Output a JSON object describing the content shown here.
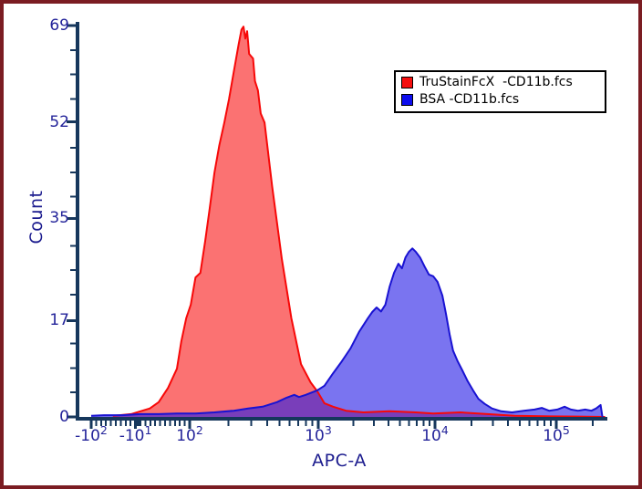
{
  "window": {
    "background": "#ffffff",
    "border_color": "#7b1c22"
  },
  "chart_data": {
    "type": "area",
    "subtype": "flow-cytometry-overlay-histogram",
    "title": "",
    "legend_position": "top-right",
    "grid": false,
    "style": {
      "axis_line_color": "#16375c",
      "tick_label_color": "#24249a",
      "axis_title_color": "#1b1b8e",
      "plot_background": "#ffffff"
    },
    "x_axis": {
      "label": "APC-A",
      "scale": "biexponential",
      "range": [
        -140,
        260000
      ],
      "major_ticks": [
        {
          "base": "-10",
          "exp": "2",
          "value": -100
        },
        {
          "base": "-10",
          "exp": "1",
          "value": -10
        },
        {
          "base": "10",
          "exp": "2",
          "value": 100
        },
        {
          "base": "10",
          "exp": "3",
          "value": 1000
        },
        {
          "base": "10",
          "exp": "4",
          "value": 10000
        },
        {
          "base": "10",
          "exp": "5",
          "value": 100000
        }
      ]
    },
    "y_axis": {
      "label": "Count",
      "scale": "linear",
      "range": [
        0,
        69
      ],
      "ticks": [
        {
          "label": "0",
          "value": 0
        },
        {
          "label": "17",
          "value": 17
        },
        {
          "label": "35",
          "value": 35
        },
        {
          "label": "52",
          "value": 52
        },
        {
          "label": "69",
          "value": 69
        }
      ],
      "minor_divisions_per_interval": 4
    },
    "series": [
      {
        "name": "TruStainFcX  -CD11b.fcs",
        "stroke": "#f70808",
        "fill": "rgba(248,12,12,0.58)",
        "swatch": "#f50f0f",
        "points": [
          [
            -56,
            0.2
          ],
          [
            -19,
            0.5
          ],
          [
            0,
            1.0
          ],
          [
            19,
            1.5
          ],
          [
            37,
            2.6
          ],
          [
            56,
            5.1
          ],
          [
            74,
            8.5
          ],
          [
            83,
            13.3
          ],
          [
            93,
            17.4
          ],
          [
            102,
            19.8
          ],
          [
            111,
            24.6
          ],
          [
            121,
            25.4
          ],
          [
            132,
            31.0
          ],
          [
            143,
            36.7
          ],
          [
            156,
            43.1
          ],
          [
            170,
            47.9
          ],
          [
            186,
            51.9
          ],
          [
            202,
            56.0
          ],
          [
            220,
            60.8
          ],
          [
            240,
            65.6
          ],
          [
            253,
            68.3
          ],
          [
            262,
            68.8
          ],
          [
            271,
            66.7
          ],
          [
            280,
            68.0
          ],
          [
            290,
            64.0
          ],
          [
            311,
            63.2
          ],
          [
            322,
            59.2
          ],
          [
            339,
            57.6
          ],
          [
            357,
            53.5
          ],
          [
            382,
            51.9
          ],
          [
            438,
            40.7
          ],
          [
            521,
            27.8
          ],
          [
            618,
            17.4
          ],
          [
            734,
            9.3
          ],
          [
            872,
            6.1
          ],
          [
            983,
            4.5
          ],
          [
            1130,
            2.4
          ],
          [
            1340,
            1.8
          ],
          [
            1730,
            1.1
          ],
          [
            2440,
            0.8
          ],
          [
            4090,
            1.0
          ],
          [
            6850,
            0.8
          ],
          [
            9660,
            0.6
          ],
          [
            16200,
            0.8
          ],
          [
            27100,
            0.5
          ],
          [
            45400,
            0.2
          ],
          [
            90200,
            0.1
          ],
          [
            179000,
            0.05
          ],
          [
            253000,
            0
          ]
        ]
      },
      {
        "name": "BSA -CD11b.fcs",
        "stroke": "#1912d2",
        "fill": "rgba(40,30,230,0.62)",
        "swatch": "#0d0dee",
        "points": [
          [
            -100,
            0.2
          ],
          [
            -74,
            0.3
          ],
          [
            -37,
            0.3
          ],
          [
            0,
            0.5
          ],
          [
            37,
            0.5
          ],
          [
            74,
            0.6
          ],
          [
            111,
            0.6
          ],
          [
            156,
            0.8
          ],
          [
            220,
            1.1
          ],
          [
            285,
            1.5
          ],
          [
            369,
            1.8
          ],
          [
            477,
            2.6
          ],
          [
            567,
            3.4
          ],
          [
            651,
            3.9
          ],
          [
            709,
            3.5
          ],
          [
            800,
            3.9
          ],
          [
            983,
            4.7
          ],
          [
            1130,
            5.5
          ],
          [
            1340,
            7.7
          ],
          [
            1590,
            9.8
          ],
          [
            1890,
            12.1
          ],
          [
            2240,
            15.0
          ],
          [
            2660,
            17.4
          ],
          [
            2900,
            18.5
          ],
          [
            3160,
            19.3
          ],
          [
            3450,
            18.6
          ],
          [
            3760,
            19.8
          ],
          [
            4090,
            23.0
          ],
          [
            4460,
            25.4
          ],
          [
            4860,
            27.0
          ],
          [
            5210,
            26.2
          ],
          [
            5580,
            28.1
          ],
          [
            5970,
            29.1
          ],
          [
            6400,
            29.7
          ],
          [
            6850,
            29.1
          ],
          [
            7460,
            28.1
          ],
          [
            8140,
            26.5
          ],
          [
            8870,
            25.1
          ],
          [
            9660,
            24.8
          ],
          [
            10500,
            23.8
          ],
          [
            11500,
            21.4
          ],
          [
            12300,
            18.2
          ],
          [
            13200,
            14.6
          ],
          [
            14100,
            11.7
          ],
          [
            15400,
            9.8
          ],
          [
            16800,
            8.2
          ],
          [
            18600,
            6.3
          ],
          [
            20600,
            4.7
          ],
          [
            22800,
            3.2
          ],
          [
            25700,
            2.3
          ],
          [
            29500,
            1.5
          ],
          [
            35100,
            1.0
          ],
          [
            43100,
            0.8
          ],
          [
            53900,
            1.1
          ],
          [
            66200,
            1.3
          ],
          [
            76000,
            1.6
          ],
          [
            87200,
            1.1
          ],
          [
            102000,
            1.3
          ],
          [
            117000,
            1.8
          ],
          [
            132000,
            1.3
          ],
          [
            151000,
            1.1
          ],
          [
            173000,
            1.3
          ],
          [
            195000,
            1.1
          ],
          [
            213000,
            1.5
          ],
          [
            232000,
            2.1
          ],
          [
            240000,
            0
          ]
        ]
      }
    ]
  }
}
